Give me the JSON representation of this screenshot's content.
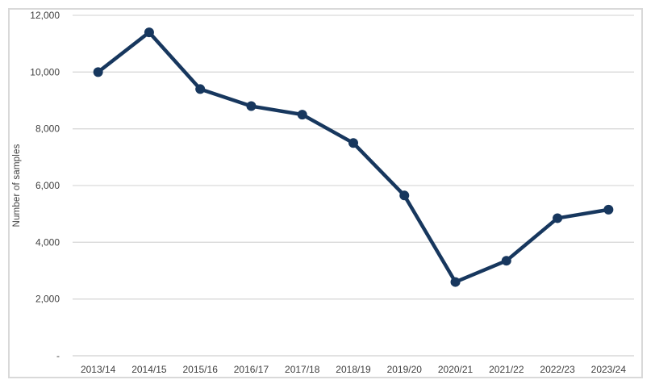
{
  "chart": {
    "y_axis_title": "Number of samples"
  },
  "chart_data": {
    "type": "line",
    "title": "",
    "xlabel": "",
    "ylabel": "Number of samples",
    "categories": [
      "2013/14",
      "2014/15",
      "2015/16",
      "2016/17",
      "2017/18",
      "2018/19",
      "2019/20",
      "2020/21",
      "2021/22",
      "2022/23",
      "2023/24"
    ],
    "series": [
      {
        "name": "Number of samples",
        "values": [
          10000,
          11400,
          9400,
          8800,
          8500,
          7500,
          5650,
          2600,
          3350,
          4850,
          5150
        ]
      }
    ],
    "ylim": [
      0,
      12000
    ],
    "y_tick_interval": 2000,
    "y_tick_labels": [
      "-",
      "2,000",
      "4,000",
      "6,000",
      "8,000",
      "10,000",
      "12,000"
    ],
    "grid": true,
    "legend": false,
    "marker": "circle",
    "line_color": "#17375E",
    "grid_color": "#D9D9D9",
    "axis_text_color": "#404040"
  }
}
